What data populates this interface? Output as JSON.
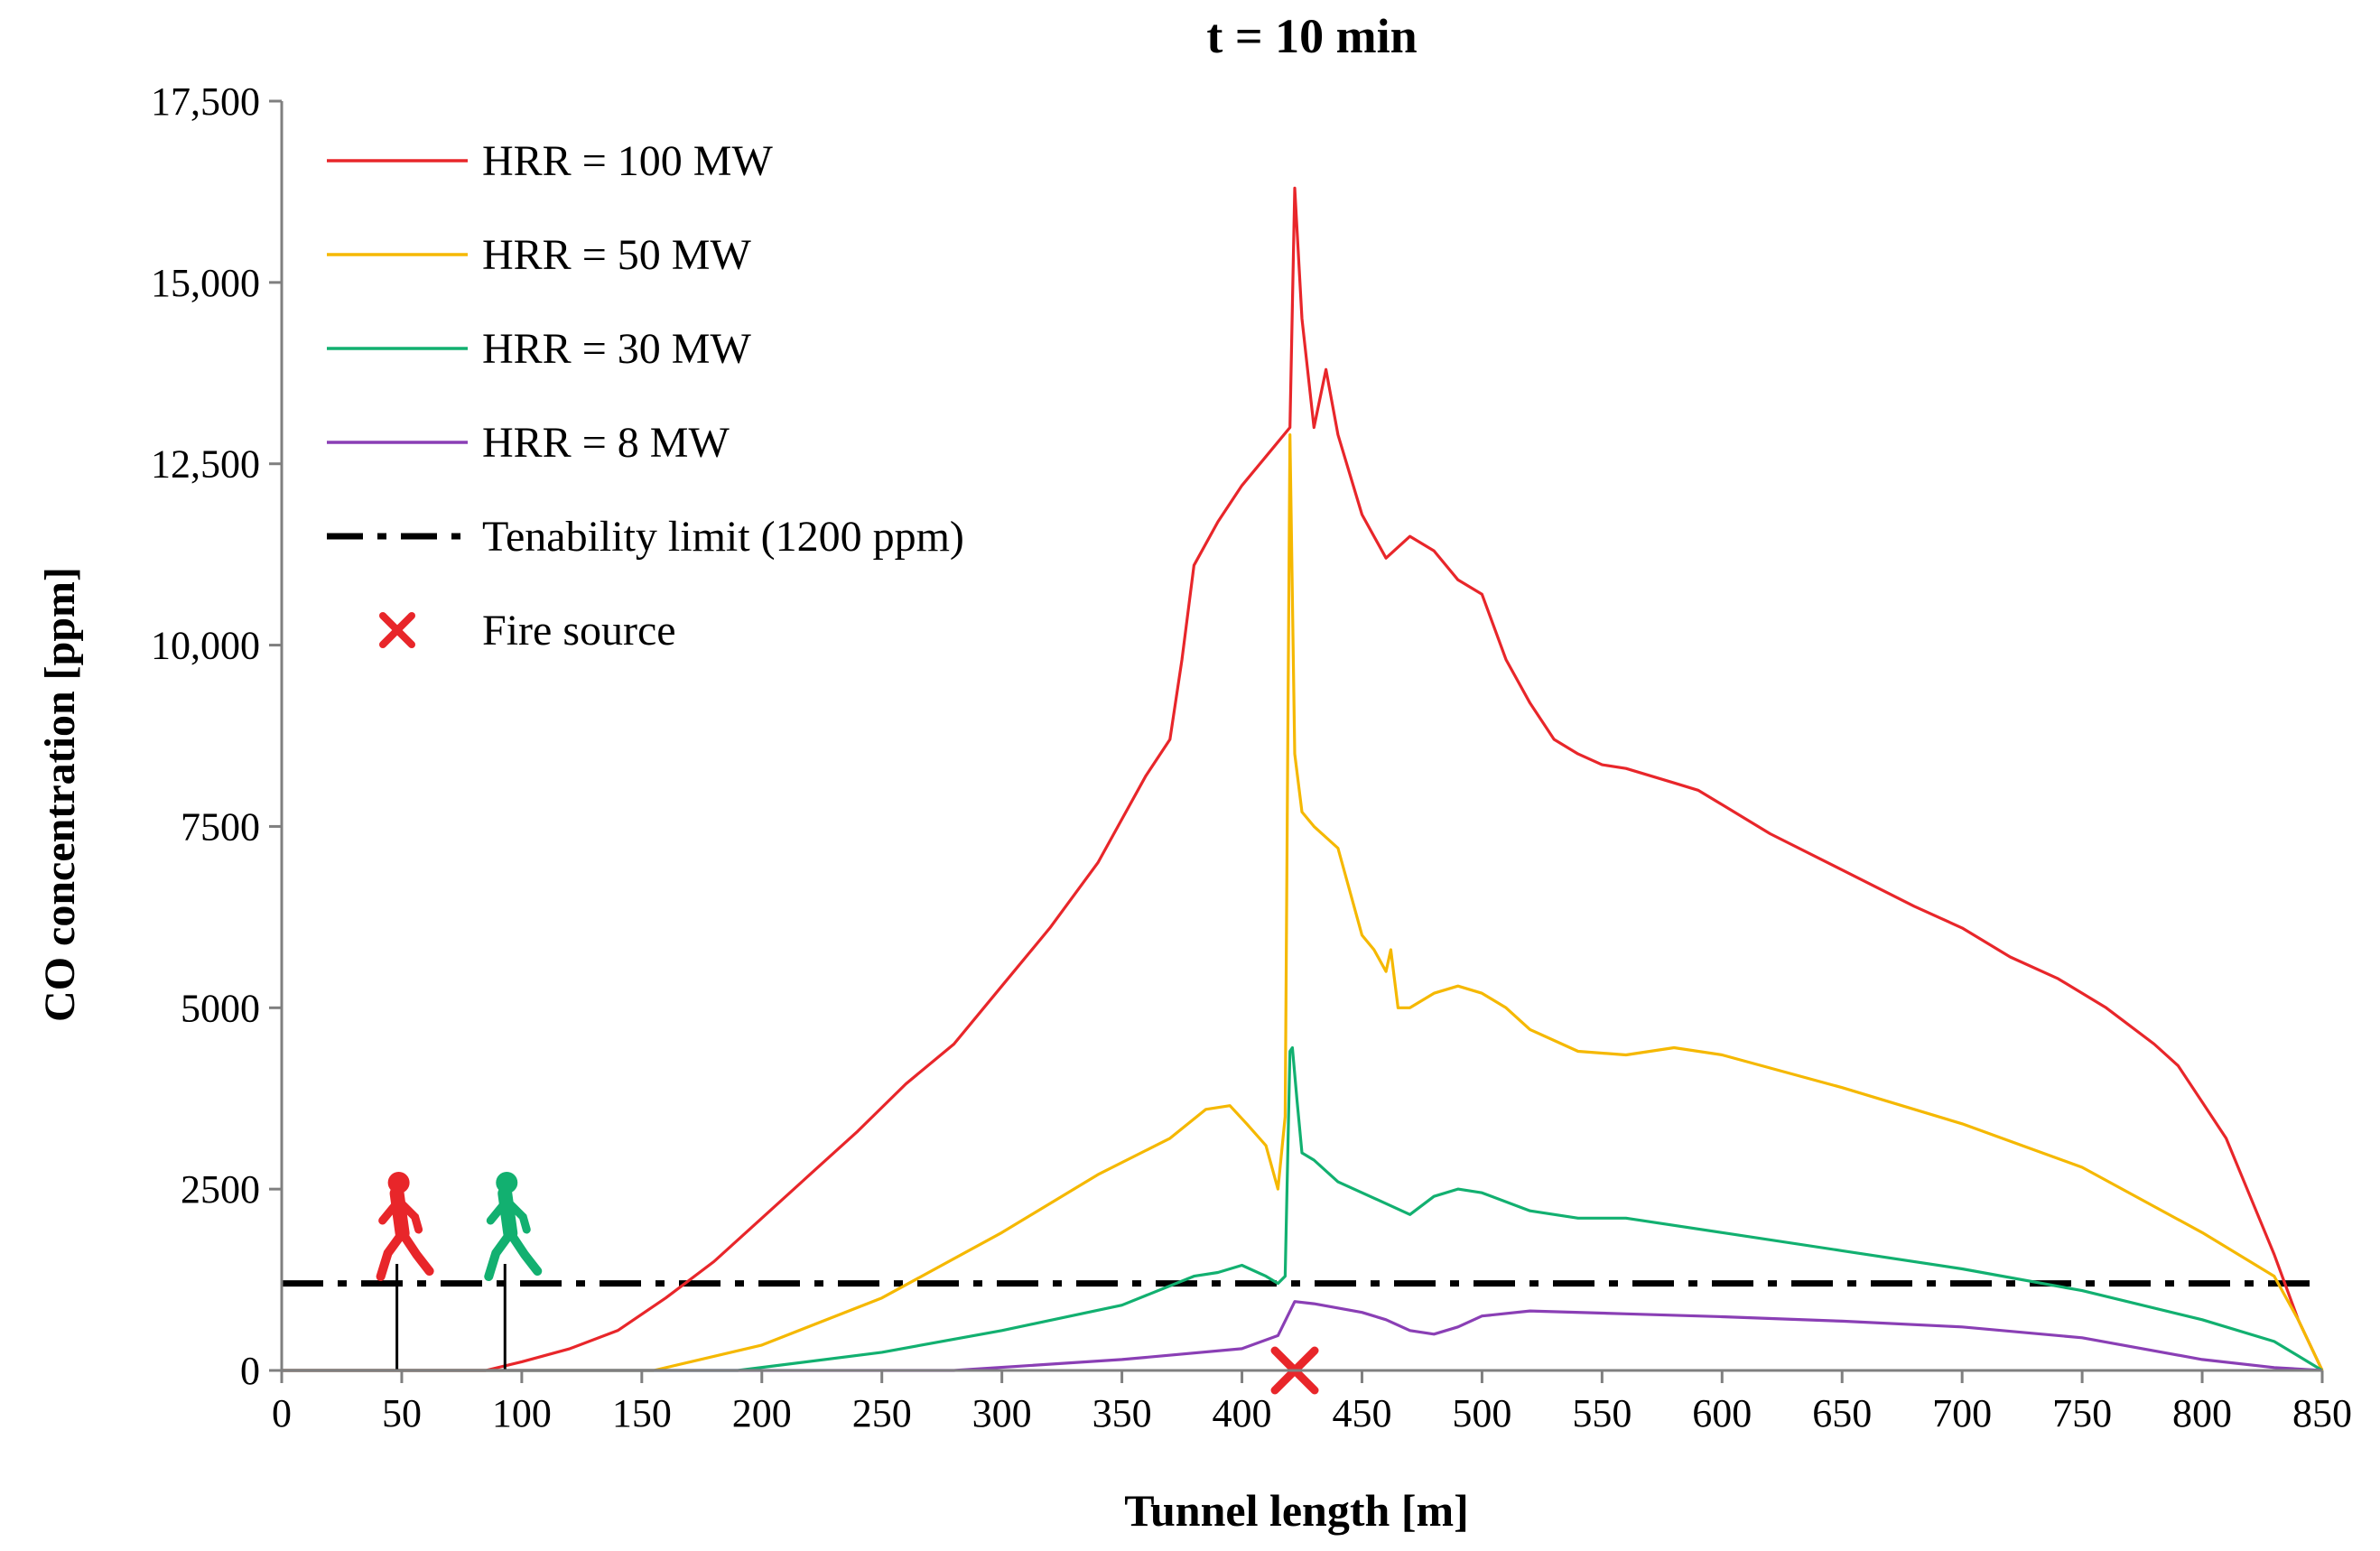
{
  "chart_data": {
    "type": "line",
    "title": "t = 10 min",
    "xlabel": "Tunnel length [m]",
    "ylabel": "CO concentration  [ppm]",
    "xlim": [
      0,
      850
    ],
    "ylim": [
      0,
      17500
    ],
    "xticks": [
      0,
      50,
      100,
      150,
      200,
      250,
      300,
      350,
      400,
      450,
      500,
      550,
      600,
      650,
      700,
      750,
      800,
      850
    ],
    "yticks": [
      0,
      2500,
      5000,
      7500,
      10000,
      12500,
      15000,
      17500
    ],
    "ytick_labels": [
      "0",
      "2500",
      "5000",
      "7500",
      "10,000",
      "12,500",
      "15,000",
      "17,500"
    ],
    "legend": {
      "position": "top-left",
      "entries": [
        {
          "label": "HRR = 100 MW",
          "kind": "line",
          "color": "#e8262a"
        },
        {
          "label": "HRR = 50 MW",
          "kind": "line",
          "color": "#f5b800"
        },
        {
          "label": "HRR = 30 MW",
          "kind": "line",
          "color": "#12b070"
        },
        {
          "label": "HRR = 8 MW",
          "kind": "line",
          "color": "#8a3fb5"
        },
        {
          "label": "Tenability limit (1200 ppm)",
          "kind": "dashdot",
          "color": "#000000"
        },
        {
          "label": "Fire source",
          "kind": "cross",
          "color": "#e8262a"
        }
      ]
    },
    "series": [
      {
        "name": "HRR = 100 MW",
        "color": "#e8262a",
        "x": [
          0,
          85,
          100,
          120,
          140,
          160,
          180,
          200,
          220,
          240,
          260,
          280,
          300,
          320,
          340,
          350,
          360,
          370,
          375,
          380,
          390,
          400,
          410,
          420,
          422,
          425,
          430,
          435,
          440,
          450,
          460,
          470,
          480,
          490,
          500,
          510,
          520,
          530,
          540,
          550,
          560,
          570,
          580,
          590,
          600,
          620,
          650,
          680,
          700,
          720,
          740,
          760,
          780,
          790,
          800,
          810,
          820,
          830,
          840,
          850
        ],
        "y": [
          0,
          0,
          120,
          300,
          550,
          1000,
          1500,
          2100,
          2700,
          3300,
          3950,
          4500,
          5300,
          6100,
          7000,
          7600,
          8200,
          8700,
          9800,
          11100,
          11700,
          12200,
          12600,
          13000,
          16300,
          14500,
          13000,
          13800,
          12900,
          11800,
          11200,
          11500,
          11300,
          10900,
          10700,
          9800,
          9200,
          8700,
          8500,
          8350,
          8300,
          8200,
          8100,
          8000,
          7800,
          7400,
          6900,
          6400,
          6100,
          5700,
          5400,
          5000,
          4500,
          4200,
          3700,
          3200,
          2400,
          1600,
          700,
          0
        ]
      },
      {
        "name": "HRR = 50 MW",
        "color": "#f5b800",
        "x": [
          0,
          155,
          200,
          250,
          300,
          340,
          370,
          385,
          395,
          402,
          410,
          415,
          418,
          420,
          422,
          425,
          430,
          440,
          450,
          455,
          460,
          462,
          465,
          470,
          480,
          490,
          500,
          510,
          520,
          540,
          560,
          580,
          600,
          650,
          700,
          750,
          800,
          830,
          840,
          850
        ],
        "y": [
          0,
          0,
          350,
          1000,
          1900,
          2700,
          3200,
          3600,
          3650,
          3400,
          3100,
          2500,
          3500,
          12900,
          8500,
          7700,
          7500,
          7200,
          6000,
          5800,
          5500,
          5800,
          5000,
          5000,
          5200,
          5300,
          5200,
          5000,
          4700,
          4400,
          4350,
          4450,
          4350,
          3900,
          3400,
          2800,
          1900,
          1300,
          700,
          0
        ]
      },
      {
        "name": "HRR = 30 MW",
        "color": "#12b070",
        "x": [
          0,
          190,
          250,
          300,
          350,
          380,
          390,
          400,
          410,
          415,
          418,
          420,
          421,
          423,
          425,
          430,
          440,
          460,
          470,
          480,
          490,
          500,
          520,
          540,
          560,
          600,
          650,
          700,
          750,
          800,
          830,
          840,
          850
        ],
        "y": [
          0,
          0,
          250,
          550,
          900,
          1300,
          1350,
          1450,
          1300,
          1200,
          1300,
          4400,
          4450,
          3700,
          3000,
          2900,
          2600,
          2300,
          2150,
          2400,
          2500,
          2450,
          2200,
          2100,
          2100,
          1900,
          1650,
          1400,
          1100,
          700,
          400,
          200,
          0
        ]
      },
      {
        "name": "HRR = 8 MW",
        "color": "#8a3fb5",
        "x": [
          0,
          280,
          350,
          400,
          415,
          422,
          430,
          450,
          460,
          470,
          480,
          490,
          500,
          520,
          560,
          600,
          650,
          700,
          750,
          800,
          830,
          850
        ],
        "y": [
          0,
          0,
          150,
          300,
          480,
          950,
          920,
          800,
          700,
          550,
          500,
          600,
          750,
          820,
          780,
          740,
          680,
          600,
          450,
          150,
          40,
          0
        ]
      }
    ],
    "tenability_limit": {
      "label": "Tenability limit (1200 ppm)",
      "y": 1200
    },
    "fire_source": {
      "label": "Fire source",
      "x": 422,
      "y": 0
    },
    "evacuee_markers": [
      {
        "name": "red-runner",
        "x": 48,
        "color": "#e8262a"
      },
      {
        "name": "green-runner",
        "x": 93,
        "color": "#12b070"
      }
    ]
  }
}
